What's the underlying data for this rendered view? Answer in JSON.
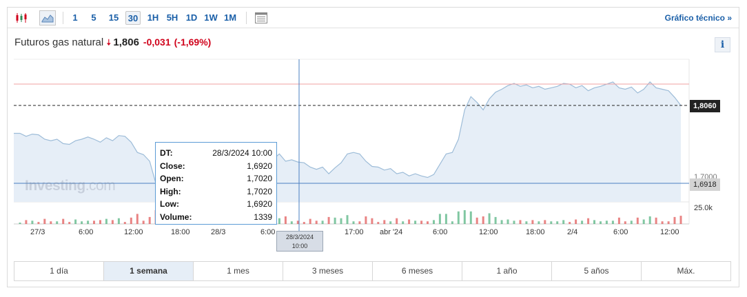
{
  "toolbar": {
    "intervals": [
      "1",
      "5",
      "15",
      "30",
      "1H",
      "5H",
      "1D",
      "1W",
      "1M"
    ],
    "active_interval": "30",
    "tech_link": "Gráfico técnico »"
  },
  "instrument": {
    "name": "Futuros gas natural",
    "last": "1,806",
    "change": "-0,031",
    "change_pct": "(-1,69%)",
    "info_label": "i"
  },
  "tooltip": {
    "rows": [
      {
        "label": "DT:",
        "value": "28/3/2024 10:00"
      },
      {
        "label": "Close:",
        "value": "1,6920"
      },
      {
        "label": "Open:",
        "value": "1,7020"
      },
      {
        "label": "High:",
        "value": "1,7020"
      },
      {
        "label": "Low:",
        "value": "1,6920"
      },
      {
        "label": "Volume:",
        "value": "1339"
      }
    ]
  },
  "crosshair_x_label": {
    "date": "28/3/2024",
    "time": "10:00"
  },
  "price_labels": {
    "last": "1,8060",
    "crosshair": "1,6918",
    "grid_1700": "1,7000",
    "volume": "25.0k"
  },
  "x_axis_labels": [
    "27/3",
    "6:00",
    "12:00",
    "18:00",
    "28/3",
    "6:00",
    "17:00",
    "abr '24",
    "6:00",
    "12:00",
    "18:00",
    "2/4",
    "6:00",
    "12:00"
  ],
  "watermark": {
    "main": "Investing",
    "suffix": ".com"
  },
  "periods": [
    "1 día",
    "1 semana",
    "1 mes",
    "3 meses",
    "6 meses",
    "1 año",
    "5 años",
    "Máx."
  ],
  "active_period": "1 semana",
  "colors": {
    "accent": "#1a5fa8",
    "down": "#d0021b",
    "area_fill": "#e6eef7",
    "line": "#9dbcd8",
    "volume_up": "#4caf7a",
    "volume_down": "#e05050"
  },
  "chart_data": {
    "type": "area",
    "title": "",
    "price": [
      1.768,
      1.768,
      1.764,
      1.767,
      1.766,
      1.76,
      1.758,
      1.76,
      1.754,
      1.753,
      1.758,
      1.76,
      1.763,
      1.76,
      1.756,
      1.762,
      1.758,
      1.765,
      1.764,
      1.756,
      1.742,
      1.739,
      1.73,
      1.7,
      1.692,
      1.7,
      1.698,
      1.712,
      1.719,
      1.722,
      1.703,
      1.7,
      1.697,
      1.695,
      1.7,
      1.699,
      1.705,
      1.708,
      1.72,
      1.727,
      1.732,
      1.722,
      1.733,
      1.74,
      1.73,
      1.732,
      1.729,
      1.728,
      1.722,
      1.719,
      1.722,
      1.713,
      1.721,
      1.728,
      1.74,
      1.742,
      1.74,
      1.73,
      1.723,
      1.722,
      1.718,
      1.72,
      1.713,
      1.715,
      1.71,
      1.713,
      1.71,
      1.708,
      1.712,
      1.726,
      1.74,
      1.742,
      1.76,
      1.8,
      1.818,
      1.81,
      1.8,
      1.815,
      1.824,
      1.828,
      1.833,
      1.836,
      1.832,
      1.834,
      1.83,
      1.832,
      1.828,
      1.83,
      1.832,
      1.836,
      1.835,
      1.83,
      1.833,
      1.826,
      1.83,
      1.832,
      1.835,
      1.838,
      1.83,
      1.828,
      1.831,
      1.823,
      1.828,
      1.838,
      1.83,
      1.828,
      1.826,
      1.817,
      1.806
    ],
    "volume_up": [
      0,
      0,
      0,
      0,
      0,
      0,
      0,
      0,
      0,
      0,
      0,
      0,
      0,
      0,
      0,
      0,
      0,
      0,
      0,
      0,
      0,
      0,
      0,
      0,
      0,
      0,
      0,
      0,
      0,
      0,
      0,
      0,
      0,
      0,
      0,
      0,
      0,
      0,
      0,
      0,
      0,
      0,
      0,
      0,
      0,
      0,
      0,
      0,
      0,
      0,
      0,
      0,
      0,
      0,
      0,
      0,
      0,
      0,
      0,
      0,
      0,
      0,
      0,
      0,
      0,
      0,
      0,
      0,
      0,
      0,
      0,
      0,
      0,
      0,
      0,
      0,
      0,
      0,
      0,
      0,
      0,
      0,
      0,
      0,
      0,
      0,
      0,
      0,
      0,
      0,
      0,
      0,
      0,
      0,
      0,
      0,
      0,
      0,
      0,
      0,
      0,
      0,
      0,
      0,
      0,
      0,
      0,
      0,
      0
    ],
    "y_gridline": 1.7,
    "last_value": 1.806,
    "crosshair_value": 1.6918
  }
}
